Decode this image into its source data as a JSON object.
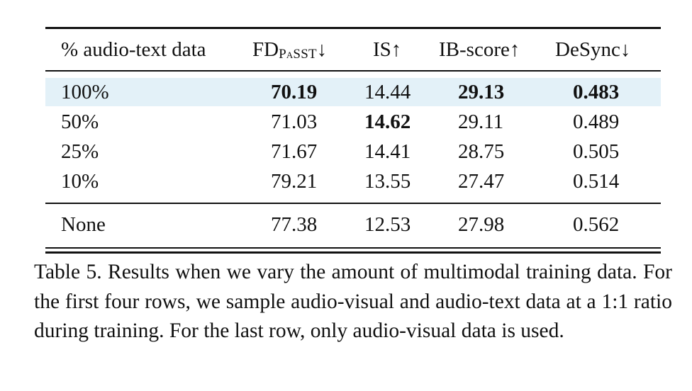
{
  "table": {
    "header": {
      "col0": "% audio-text data",
      "col1_main": "FD",
      "col1_sub": "PaSST",
      "col1_arrow": "↓",
      "col2": "IS↑",
      "col3": "IB-score↑",
      "col4": "DeSync↓"
    },
    "rows": [
      {
        "label": "100%",
        "fd": "70.19",
        "is": "14.44",
        "ib": "29.13",
        "desync": "0.483",
        "highlighted": true
      },
      {
        "label": "50%",
        "fd": "71.03",
        "is": "14.62",
        "ib": "29.11",
        "desync": "0.489"
      },
      {
        "label": "25%",
        "fd": "71.67",
        "is": "14.41",
        "ib": "28.75",
        "desync": "0.505"
      },
      {
        "label": "10%",
        "fd": "79.21",
        "is": "13.55",
        "ib": "27.47",
        "desync": "0.514"
      }
    ],
    "last_row": {
      "label": "None",
      "fd": "77.38",
      "is": "12.53",
      "ib": "27.98",
      "desync": "0.562"
    },
    "colors": {
      "highlight": "#e3f1f8"
    }
  },
  "caption": "Table 5. Results when we vary the amount of multimodal training data. For the first four rows, we sample audio-visual and audio-text data at a 1:1 ratio during training. For the last row, only audio-visual data is used."
}
